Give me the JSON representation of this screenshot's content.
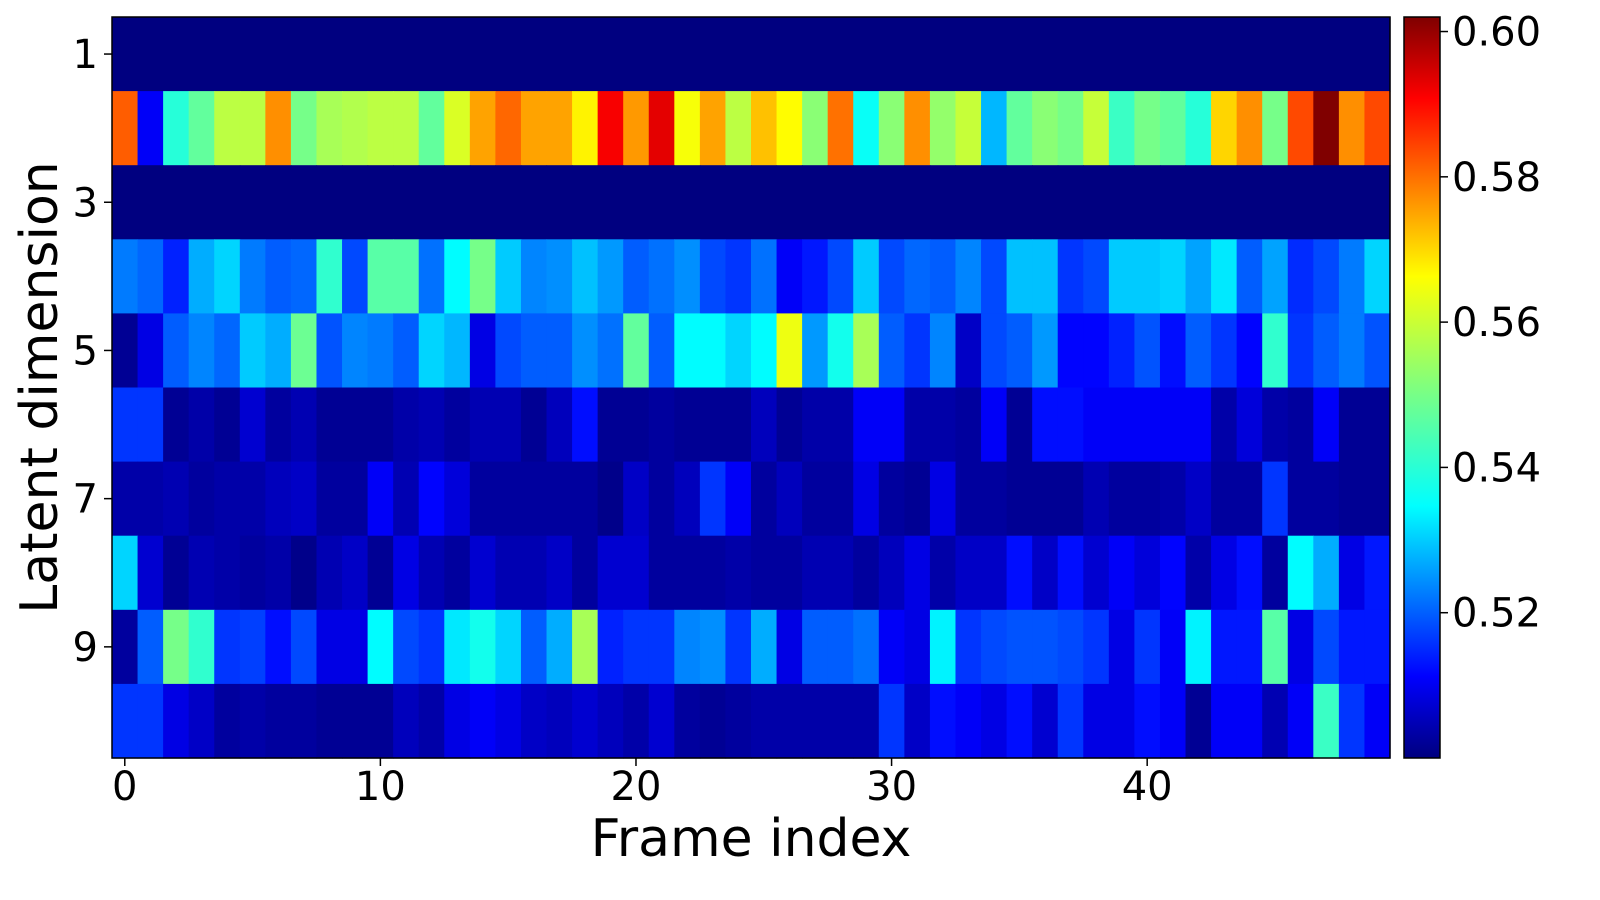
{
  "chart_data": {
    "type": "heatmap",
    "title": "",
    "xlabel": "Frame index",
    "ylabel": "Latent dimension",
    "x_ticks": [
      0,
      10,
      20,
      30,
      40
    ],
    "y_ticks": [
      1,
      3,
      5,
      7,
      9
    ],
    "n_frames": 50,
    "n_dims": 10,
    "colormap": "jet",
    "colorbar": {
      "vmin": 0.5,
      "vmax": 0.602,
      "ticks": [
        "0.52",
        "0.54",
        "0.56",
        "0.58",
        "0.60"
      ],
      "tick_values": [
        0.52,
        0.54,
        0.56,
        0.58,
        0.6
      ]
    },
    "values": [
      [
        0.5,
        0.5,
        0.5,
        0.5,
        0.5,
        0.5,
        0.5,
        0.5,
        0.5,
        0.5,
        0.5,
        0.5,
        0.5,
        0.5,
        0.5,
        0.5,
        0.5,
        0.5,
        0.5,
        0.5,
        0.5,
        0.5,
        0.5,
        0.5,
        0.5,
        0.5,
        0.5,
        0.5,
        0.5,
        0.5,
        0.5,
        0.5,
        0.5,
        0.5,
        0.5,
        0.5,
        0.5,
        0.5,
        0.5,
        0.5,
        0.5,
        0.5,
        0.5,
        0.5,
        0.5,
        0.5,
        0.5,
        0.5,
        0.5,
        0.5
      ],
      [
        0.58,
        0.512,
        0.542,
        0.548,
        0.557,
        0.557,
        0.575,
        0.55,
        0.555,
        0.556,
        0.557,
        0.557,
        0.548,
        0.56,
        0.573,
        0.579,
        0.573,
        0.573,
        0.565,
        0.59,
        0.574,
        0.592,
        0.563,
        0.573,
        0.557,
        0.57,
        0.564,
        0.552,
        0.578,
        0.539,
        0.552,
        0.575,
        0.553,
        0.558,
        0.531,
        0.548,
        0.552,
        0.55,
        0.558,
        0.544,
        0.55,
        0.548,
        0.542,
        0.568,
        0.575,
        0.55,
        0.582,
        0.602,
        0.575,
        0.582
      ],
      [
        0.5,
        0.5,
        0.5,
        0.5,
        0.5,
        0.5,
        0.5,
        0.5,
        0.5,
        0.5,
        0.5,
        0.5,
        0.5,
        0.5,
        0.5,
        0.5,
        0.5,
        0.5,
        0.5,
        0.5,
        0.5,
        0.5,
        0.5,
        0.5,
        0.5,
        0.5,
        0.5,
        0.5,
        0.5,
        0.5,
        0.5,
        0.5,
        0.5,
        0.5,
        0.5,
        0.5,
        0.5,
        0.5,
        0.5,
        0.5,
        0.5,
        0.5,
        0.5,
        0.5,
        0.5,
        0.5,
        0.5,
        0.5,
        0.5,
        0.5
      ],
      [
        0.525,
        0.523,
        0.516,
        0.53,
        0.534,
        0.525,
        0.522,
        0.523,
        0.543,
        0.52,
        0.547,
        0.547,
        0.524,
        0.538,
        0.55,
        0.533,
        0.526,
        0.527,
        0.532,
        0.528,
        0.522,
        0.524,
        0.527,
        0.52,
        0.518,
        0.524,
        0.512,
        0.515,
        0.52,
        0.533,
        0.52,
        0.523,
        0.522,
        0.526,
        0.52,
        0.532,
        0.532,
        0.518,
        0.52,
        0.533,
        0.533,
        0.534,
        0.529,
        0.536,
        0.522,
        0.529,
        0.517,
        0.52,
        0.525,
        0.534
      ],
      [
        0.502,
        0.51,
        0.522,
        0.526,
        0.523,
        0.533,
        0.53,
        0.549,
        0.521,
        0.526,
        0.525,
        0.522,
        0.534,
        0.531,
        0.51,
        0.52,
        0.522,
        0.522,
        0.527,
        0.524,
        0.548,
        0.522,
        0.538,
        0.538,
        0.534,
        0.538,
        0.562,
        0.528,
        0.54,
        0.555,
        0.522,
        0.518,
        0.526,
        0.507,
        0.52,
        0.522,
        0.528,
        0.513,
        0.513,
        0.516,
        0.521,
        0.514,
        0.522,
        0.518,
        0.513,
        0.543,
        0.518,
        0.522,
        0.525,
        0.521
      ],
      [
        0.518,
        0.518,
        0.502,
        0.504,
        0.502,
        0.508,
        0.503,
        0.505,
        0.502,
        0.502,
        0.502,
        0.504,
        0.505,
        0.503,
        0.505,
        0.505,
        0.502,
        0.506,
        0.514,
        0.502,
        0.502,
        0.503,
        0.502,
        0.502,
        0.502,
        0.506,
        0.502,
        0.504,
        0.504,
        0.512,
        0.512,
        0.504,
        0.504,
        0.503,
        0.512,
        0.502,
        0.514,
        0.514,
        0.512,
        0.512,
        0.512,
        0.512,
        0.512,
        0.504,
        0.509,
        0.504,
        0.503,
        0.512,
        0.502,
        0.502
      ],
      [
        0.504,
        0.504,
        0.505,
        0.503,
        0.504,
        0.504,
        0.506,
        0.507,
        0.503,
        0.503,
        0.512,
        0.505,
        0.513,
        0.509,
        0.503,
        0.503,
        0.503,
        0.503,
        0.503,
        0.501,
        0.507,
        0.503,
        0.506,
        0.518,
        0.512,
        0.503,
        0.506,
        0.503,
        0.503,
        0.51,
        0.503,
        0.502,
        0.51,
        0.503,
        0.503,
        0.502,
        0.502,
        0.502,
        0.505,
        0.503,
        0.503,
        0.504,
        0.507,
        0.503,
        0.503,
        0.518,
        0.503,
        0.503,
        0.502,
        0.502
      ],
      [
        0.534,
        0.508,
        0.502,
        0.505,
        0.504,
        0.503,
        0.504,
        0.501,
        0.505,
        0.507,
        0.502,
        0.51,
        0.505,
        0.503,
        0.508,
        0.505,
        0.505,
        0.507,
        0.503,
        0.508,
        0.508,
        0.503,
        0.503,
        0.503,
        0.504,
        0.503,
        0.503,
        0.505,
        0.505,
        0.503,
        0.506,
        0.51,
        0.504,
        0.507,
        0.507,
        0.514,
        0.507,
        0.514,
        0.508,
        0.512,
        0.509,
        0.513,
        0.504,
        0.51,
        0.514,
        0.503,
        0.538,
        0.53,
        0.51,
        0.515
      ],
      [
        0.503,
        0.522,
        0.55,
        0.543,
        0.518,
        0.519,
        0.514,
        0.52,
        0.51,
        0.51,
        0.538,
        0.52,
        0.518,
        0.536,
        0.54,
        0.534,
        0.522,
        0.53,
        0.555,
        0.516,
        0.518,
        0.518,
        0.526,
        0.527,
        0.518,
        0.53,
        0.51,
        0.522,
        0.522,
        0.524,
        0.512,
        0.51,
        0.537,
        0.518,
        0.52,
        0.521,
        0.521,
        0.52,
        0.518,
        0.51,
        0.518,
        0.512,
        0.537,
        0.515,
        0.515,
        0.547,
        0.51,
        0.52,
        0.515,
        0.515
      ],
      [
        0.518,
        0.518,
        0.51,
        0.507,
        0.503,
        0.504,
        0.503,
        0.503,
        0.502,
        0.502,
        0.502,
        0.506,
        0.504,
        0.51,
        0.512,
        0.51,
        0.507,
        0.506,
        0.508,
        0.506,
        0.504,
        0.508,
        0.503,
        0.502,
        0.503,
        0.504,
        0.504,
        0.504,
        0.504,
        0.504,
        0.518,
        0.507,
        0.514,
        0.512,
        0.51,
        0.514,
        0.508,
        0.518,
        0.51,
        0.51,
        0.514,
        0.512,
        0.502,
        0.512,
        0.512,
        0.505,
        0.512,
        0.544,
        0.518,
        0.512
      ]
    ]
  }
}
